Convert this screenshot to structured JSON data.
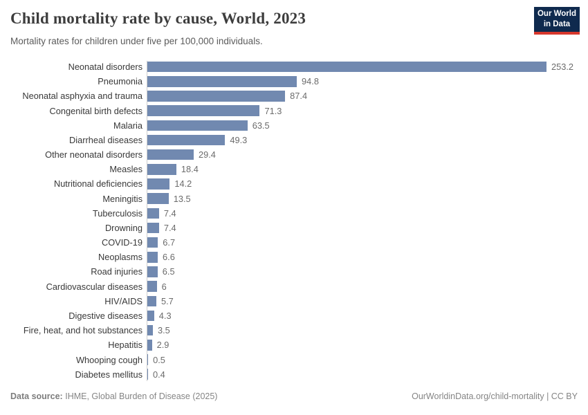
{
  "header": {
    "title": "Child mortality rate by cause, World, 2023",
    "subtitle": "Mortality rates for children under five per 100,000 individuals.",
    "logo": {
      "line1": "Our World",
      "line2": "in Data",
      "bg_color": "#0f2a4e",
      "accent_color": "#d7382d"
    }
  },
  "chart_data": {
    "type": "bar",
    "orientation": "horizontal",
    "title": "Child mortality rate by cause, World, 2023",
    "subtitle": "Mortality rates for children under five per 100,000 individuals.",
    "xlabel": "",
    "ylabel": "",
    "xlim": [
      0,
      253.2
    ],
    "grid": false,
    "legend": "none",
    "bar_color": "#7189b0",
    "categories": [
      "Neonatal disorders",
      "Pneumonia",
      "Neonatal asphyxia and trauma",
      "Congenital birth defects",
      "Malaria",
      "Diarrheal diseases",
      "Other neonatal disorders",
      "Measles",
      "Nutritional deficiencies",
      "Meningitis",
      "Tuberculosis",
      "Drowning",
      "COVID-19",
      "Neoplasms",
      "Road injuries",
      "Cardiovascular diseases",
      "HIV/AIDS",
      "Digestive diseases",
      "Fire, heat, and hot substances",
      "Hepatitis",
      "Whooping cough",
      "Diabetes mellitus"
    ],
    "values": [
      253.2,
      94.8,
      87.4,
      71.3,
      63.5,
      49.3,
      29.4,
      18.4,
      14.2,
      13.5,
      7.4,
      7.4,
      6.7,
      6.6,
      6.5,
      6,
      5.7,
      4.3,
      3.5,
      2.9,
      0.5,
      0.4
    ],
    "value_labels": [
      "253.2",
      "94.8",
      "87.4",
      "71.3",
      "63.5",
      "49.3",
      "29.4",
      "18.4",
      "14.2",
      "13.5",
      "7.4",
      "7.4",
      "6.7",
      "6.6",
      "6.5",
      "6",
      "5.7",
      "4.3",
      "3.5",
      "2.9",
      "0.5",
      "0.4"
    ]
  },
  "footer": {
    "source_label": "Data source:",
    "source_text": "IHME, Global Burden of Disease (2025)",
    "attribution": "OurWorldinData.org/child-mortality | CC BY"
  }
}
